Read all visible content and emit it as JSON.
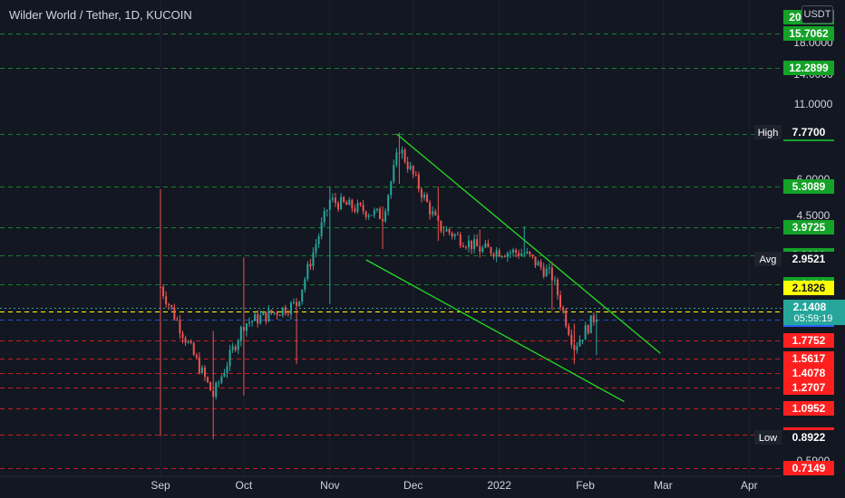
{
  "title": "Wilder World / Tether, 1D, KUCOIN",
  "currency_button": "USDT",
  "colors": {
    "background": "#131722",
    "text": "#d1d4dc",
    "up": "#26a69a",
    "down": "#ef5350",
    "green_level": "#14a228",
    "red_level": "#ff1f1f",
    "blue_level": "#2962ff",
    "yellow_level": "#ffff00",
    "trendline": "#22dd22"
  },
  "chart_data": {
    "type": "candlestick",
    "x_ticks": [
      "Sep",
      "Oct",
      "Nov",
      "Dec",
      "2022",
      "Feb",
      "Mar",
      "Apr"
    ],
    "y_scale": "log",
    "y_ticks": [
      "18.0000",
      "14.0000",
      "11.0000",
      "6.0000",
      "4.5000",
      "0.5900"
    ],
    "ohlc_approx": [
      {
        "date": "2021-09-01",
        "open": 0.9,
        "high": 5.2,
        "low": 0.9,
        "close": 2.6
      },
      {
        "date": "2021-09-20",
        "open": 1.7,
        "high": 1.9,
        "low": 0.88,
        "close": 1.2
      },
      {
        "date": "2021-10-01",
        "open": 1.3,
        "high": 3.2,
        "low": 1.2,
        "close": 2.0
      },
      {
        "date": "2021-10-20",
        "open": 1.6,
        "high": 2.4,
        "low": 1.5,
        "close": 2.3
      },
      {
        "date": "2021-11-01",
        "open": 2.4,
        "high": 5.3,
        "low": 2.3,
        "close": 4.8
      },
      {
        "date": "2021-11-20",
        "open": 4.2,
        "high": 4.6,
        "low": 3.4,
        "close": 4.3
      },
      {
        "date": "2021-11-26",
        "open": 6.0,
        "high": 7.77,
        "low": 5.4,
        "close": 7.0
      },
      {
        "date": "2021-12-10",
        "open": 5.0,
        "high": 5.3,
        "low": 3.6,
        "close": 4.0
      },
      {
        "date": "2021-12-25",
        "open": 3.6,
        "high": 3.9,
        "low": 3.2,
        "close": 3.4
      },
      {
        "date": "2022-01-10",
        "open": 3.9,
        "high": 4.0,
        "low": 3.2,
        "close": 3.3
      },
      {
        "date": "2022-01-20",
        "open": 2.6,
        "high": 3.1,
        "low": 2.2,
        "close": 2.8
      },
      {
        "date": "2022-01-28",
        "open": 1.8,
        "high": 2.0,
        "low": 1.5,
        "close": 1.7
      },
      {
        "date": "2022-02-05",
        "open": 1.7,
        "high": 2.15,
        "low": 1.6,
        "close": 2.14
      }
    ],
    "levels": [
      {
        "value": "20.5000",
        "kind": "green"
      },
      {
        "value": "15.7062",
        "kind": "green"
      },
      {
        "value": "12.2899",
        "kind": "green"
      },
      {
        "value": "7.6824",
        "kind": "green"
      },
      {
        "value": "5.3089",
        "kind": "green"
      },
      {
        "value": "3.9725",
        "kind": "green"
      },
      {
        "value": "3.2399",
        "kind": "green"
      },
      {
        "value": "2.6424",
        "kind": "green"
      },
      {
        "value": "2.1826",
        "kind": "yellow"
      },
      {
        "value": "2.0541",
        "kind": "blue"
      },
      {
        "value": "1.7752",
        "kind": "red"
      },
      {
        "value": "1.5617",
        "kind": "red"
      },
      {
        "value": "1.4078",
        "kind": "red"
      },
      {
        "value": "1.2707",
        "kind": "red"
      },
      {
        "value": "1.0952",
        "kind": "red"
      },
      {
        "value": "0.9073",
        "kind": "red"
      },
      {
        "value": "0.7149",
        "kind": "red"
      }
    ],
    "markers": [
      {
        "label": "High",
        "value": "7.7700"
      },
      {
        "label": "Avg",
        "value": "2.9521"
      },
      {
        "label": "Low",
        "value": "0.8922"
      }
    ],
    "current_price": {
      "value": "2.1408",
      "countdown": "05:59:19"
    },
    "trendlines": [
      {
        "from": {
          "date": "2021-11-25",
          "price": 7.7
        },
        "to": {
          "date": "2022-02-28",
          "price": 1.62
        }
      },
      {
        "from": {
          "date": "2021-11-14",
          "price": 3.15
        },
        "to": {
          "date": "2022-02-15",
          "price": 1.15
        }
      }
    ]
  }
}
